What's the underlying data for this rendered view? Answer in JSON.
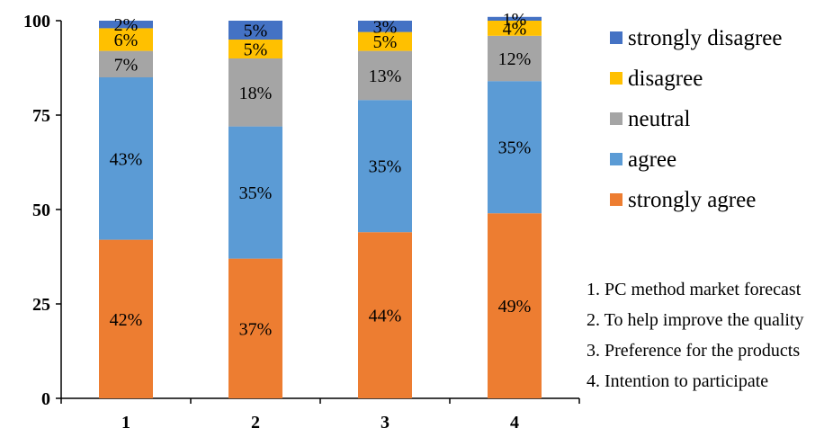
{
  "chart_data": {
    "type": "bar",
    "stacked": true,
    "categories": [
      "1",
      "2",
      "3",
      "4"
    ],
    "ylim": [
      0,
      100
    ],
    "yticks": [
      0,
      25,
      50,
      75,
      100
    ],
    "grid": false,
    "legend_position": "right",
    "series": [
      {
        "name": "strongly agree",
        "color": "#ED7D31",
        "values": [
          42,
          37,
          44,
          49
        ],
        "labels": [
          "42%",
          "37%",
          "44%",
          "49%"
        ]
      },
      {
        "name": "agree",
        "color": "#5B9BD5",
        "values": [
          43,
          35,
          35,
          35
        ],
        "labels": [
          "43%",
          "35%",
          "35%",
          "35%"
        ]
      },
      {
        "name": "neutral",
        "color": "#A5A5A5",
        "values": [
          7,
          18,
          13,
          12
        ],
        "labels": [
          "7%",
          "18%",
          "13%",
          "12%"
        ]
      },
      {
        "name": "disagree",
        "color": "#FFC000",
        "values": [
          6,
          5,
          5,
          4
        ],
        "labels": [
          "6%",
          "5%",
          "5%",
          "4%"
        ]
      },
      {
        "name": "strongly disagree",
        "color": "#4472C4",
        "values": [
          2,
          5,
          3,
          1
        ],
        "labels": [
          "2%",
          "5%",
          "3%",
          "1%"
        ]
      }
    ],
    "legend_order": [
      "strongly disagree",
      "disagree",
      "neutral",
      "agree",
      "strongly agree"
    ],
    "notes": [
      "1. PC method market forecast",
      "2. To help improve the quality",
      "3. Preference  for the products",
      "4. Intention to participate"
    ]
  }
}
